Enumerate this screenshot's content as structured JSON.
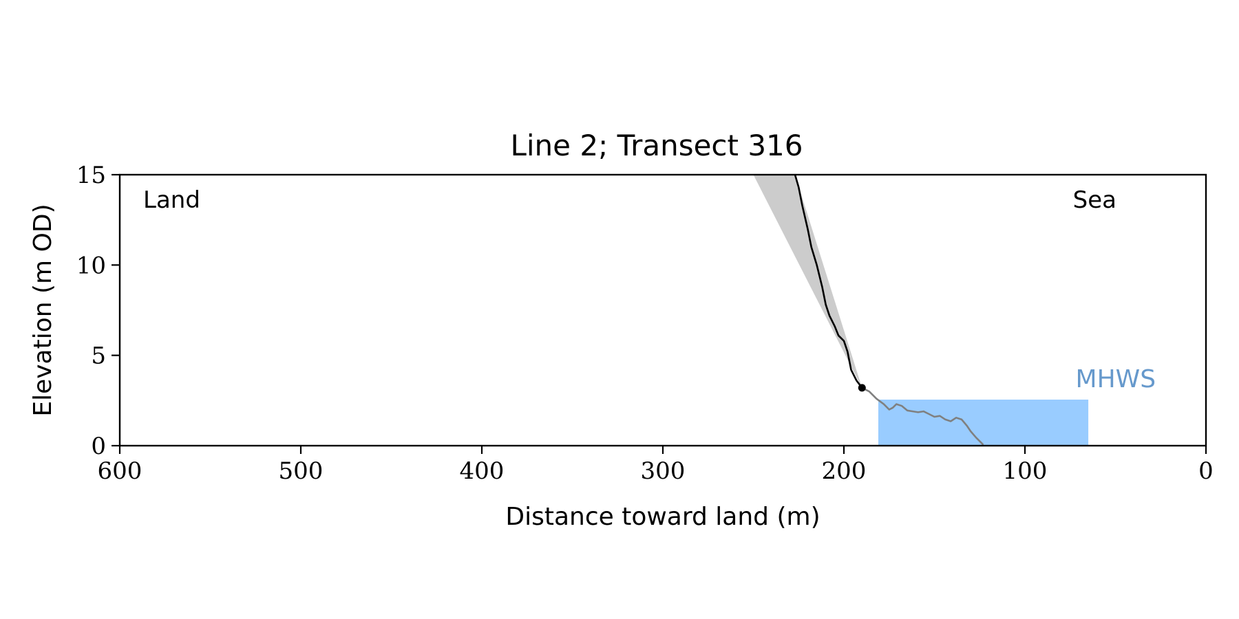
{
  "chart_data": {
    "type": "line",
    "title": "Line 2; Transect 316",
    "xlabel": "Distance toward land (m)",
    "ylabel": "Elevation (m OD)",
    "xlim": [
      600,
      0
    ],
    "ylim": [
      0,
      15
    ],
    "x_inverted": true,
    "xticks": [
      600,
      500,
      400,
      300,
      200,
      100,
      0
    ],
    "yticks": [
      0,
      5,
      10,
      15
    ],
    "grid": false,
    "annotations": {
      "land": "Land",
      "sea": "Sea",
      "mhws": "MHWS"
    },
    "series": [
      {
        "role": "cliff-profile",
        "color": "#000000",
        "points": [
          [
            227,
            15.0
          ],
          [
            225,
            14.3
          ],
          [
            223,
            13.3
          ],
          [
            220,
            12.0
          ],
          [
            218,
            11.0
          ],
          [
            215,
            10.0
          ],
          [
            212,
            8.8
          ],
          [
            210,
            7.8
          ],
          [
            208,
            7.2
          ],
          [
            205,
            6.6
          ],
          [
            203,
            6.1
          ],
          [
            200,
            5.8
          ],
          [
            198,
            5.2
          ],
          [
            196,
            4.2
          ],
          [
            193,
            3.6
          ],
          [
            190,
            3.2
          ]
        ]
      },
      {
        "role": "beach-profile",
        "color": "#808080",
        "points": [
          [
            190,
            3.2
          ],
          [
            186,
            3.0
          ],
          [
            182,
            2.6
          ],
          [
            178,
            2.3
          ],
          [
            175,
            2.0
          ],
          [
            173,
            2.1
          ],
          [
            171,
            2.3
          ],
          [
            168,
            2.2
          ],
          [
            165,
            1.95
          ],
          [
            162,
            1.9
          ],
          [
            159,
            1.85
          ],
          [
            156,
            1.9
          ],
          [
            153,
            1.75
          ],
          [
            150,
            1.6
          ],
          [
            147,
            1.65
          ],
          [
            144,
            1.45
          ],
          [
            141,
            1.35
          ],
          [
            138,
            1.55
          ],
          [
            135,
            1.45
          ],
          [
            132,
            1.1
          ],
          [
            130,
            0.8
          ],
          [
            127,
            0.45
          ],
          [
            123,
            0.05
          ]
        ]
      }
    ],
    "shaded_area": {
      "role": "cliff-wedge",
      "color": "#cccccc",
      "points": [
        [
          250,
          15.0
        ],
        [
          227,
          15.0
        ],
        [
          190,
          3.2
        ]
      ]
    },
    "mhws_area": {
      "color": "#99ccff",
      "x_range": [
        181,
        65
      ],
      "level": 2.55
    },
    "marker": {
      "x": 190,
      "y": 3.2,
      "color": "#000000"
    },
    "colors": {
      "axis": "#000000",
      "mhws_text": "#6699cc"
    }
  }
}
